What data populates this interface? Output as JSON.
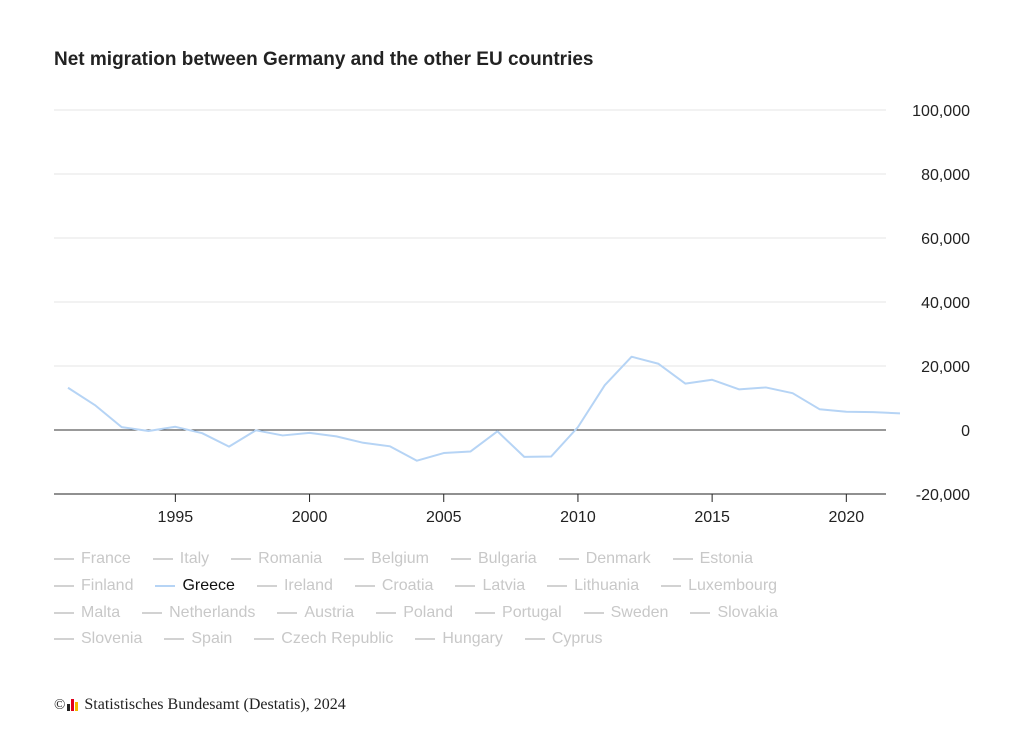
{
  "title": "Net migration between Germany and the other EU countries",
  "footer": {
    "copyright_symbol": "©",
    "source_text": "Statistisches Bundesamt (Destatis), 2024",
    "logo_colors": [
      "#222222",
      "#e2001a",
      "#f3b800"
    ]
  },
  "colors": {
    "active_series": "#b6d4f5",
    "inactive_legend": "#d2d2d2",
    "gridline": "#e6e6e6",
    "zero_line": "#333333"
  },
  "legend": {
    "rows": [
      [
        "France",
        "Italy",
        "Romania",
        "Belgium",
        "Bulgaria",
        "Denmark",
        "Estonia"
      ],
      [
        "Finland",
        "Greece",
        "Ireland",
        "Croatia",
        "Latvia",
        "Lithuania",
        "Luxembourg"
      ],
      [
        "Malta",
        "Netherlands",
        "Austria",
        "Poland",
        "Portugal",
        "Sweden",
        "Slovakia"
      ],
      [
        "Slovenia",
        "Spain",
        "Czech Republic",
        "Hungary",
        "Cyprus"
      ]
    ],
    "active": "Greece"
  },
  "chart_data": {
    "type": "line",
    "title": "Net migration between Germany and the other EU countries",
    "xlabel": "",
    "ylabel": "",
    "xlim": [
      1991,
      2022
    ],
    "ylim": [
      -20000,
      100000
    ],
    "x_ticks": [
      1995,
      2000,
      2005,
      2010,
      2015,
      2020
    ],
    "y_ticks": [
      -20000,
      0,
      20000,
      40000,
      60000,
      80000,
      100000
    ],
    "y_tick_labels": [
      "-20,000",
      "0",
      "20,000",
      "40,000",
      "60,000",
      "80,000",
      "100,000"
    ],
    "grid": true,
    "y_axis_position": "right",
    "legend_position": "bottom",
    "x": [
      1991,
      1992,
      1993,
      1994,
      1995,
      1996,
      1997,
      1998,
      1999,
      2000,
      2001,
      2002,
      2003,
      2004,
      2005,
      2006,
      2007,
      2008,
      2009,
      2010,
      2011,
      2012,
      2013,
      2014,
      2015,
      2016,
      2017,
      2018,
      2019,
      2020,
      2021,
      2022
    ],
    "series": [
      {
        "name": "Greece",
        "values": [
          13200,
          7800,
          900,
          -300,
          1000,
          -1000,
          -5200,
          -100,
          -1700,
          -900,
          -2000,
          -4000,
          -5100,
          -9600,
          -7200,
          -6700,
          -400,
          -8400,
          -8300,
          900,
          14000,
          22900,
          20700,
          14500,
          15700,
          12700,
          13300,
          11500,
          6500,
          5700,
          5600,
          5200
        ]
      }
    ]
  }
}
